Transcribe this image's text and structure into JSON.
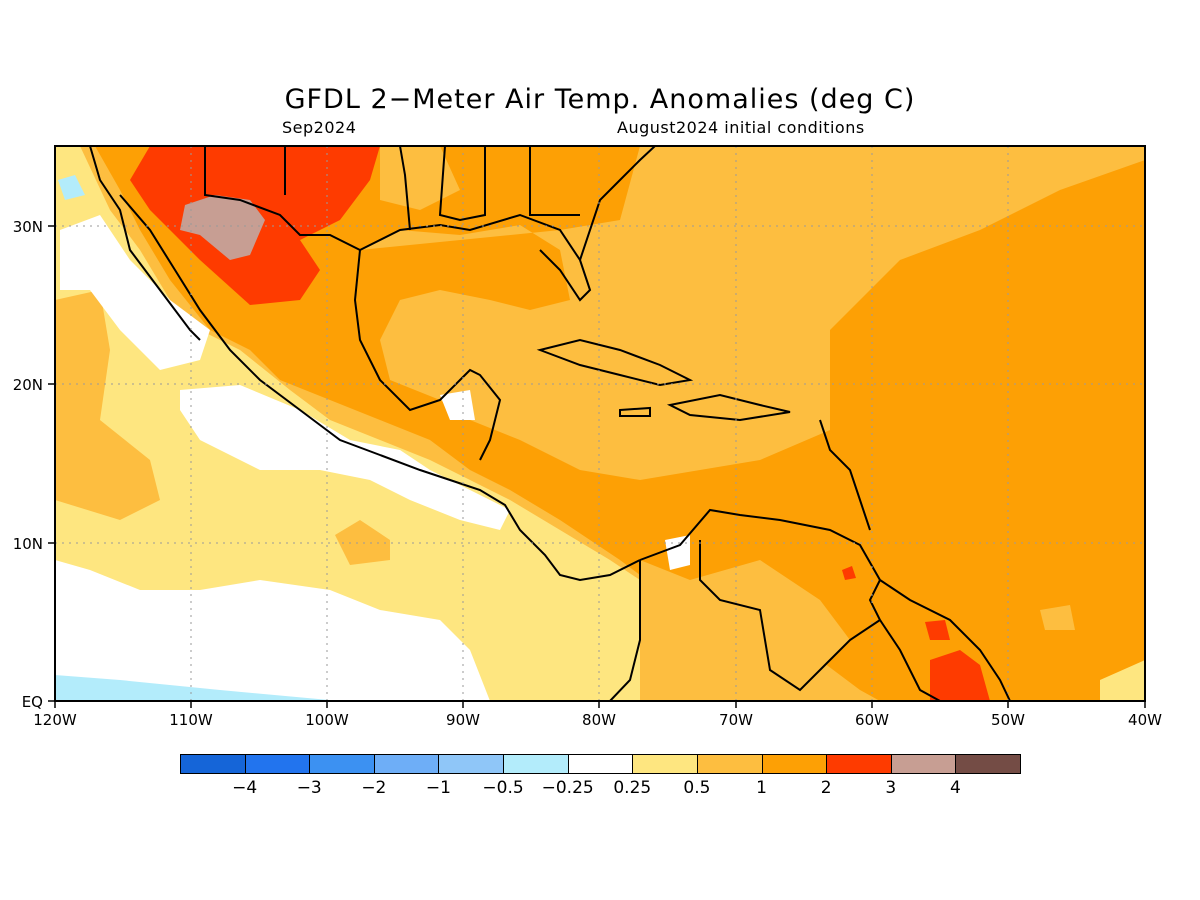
{
  "title": "GFDL 2−Meter Air Temp. Anomalies (deg C)",
  "subtitle_left": "Sep2024",
  "subtitle_right": "August2024 initial conditions",
  "x_ticks": [
    "120W",
    "110W",
    "100W",
    "90W",
    "80W",
    "70W",
    "60W",
    "50W",
    "40W"
  ],
  "y_ticks": [
    "EQ",
    "10N",
    "20N",
    "30N"
  ],
  "colorbar": {
    "colors": [
      "#1565d8",
      "#2274ee",
      "#3c91f2",
      "#6eaef7",
      "#8fc6f8",
      "#b3ecfb",
      "#ffffff",
      "#fee680",
      "#fdbe40",
      "#fda005",
      "#fe3b00",
      "#c79e93",
      "#744c45"
    ],
    "labels": [
      "−4",
      "−3",
      "−2",
      "−1",
      "−0.5",
      "−0.25",
      "0.25",
      "0.5",
      "1",
      "2",
      "3",
      "4"
    ]
  },
  "map": {
    "extent": {
      "lon_min": -120,
      "lon_max": -40,
      "lat_min": 0,
      "lat_max": 35
    },
    "background_color": "#fda005",
    "coast_color": "#000000"
  }
}
